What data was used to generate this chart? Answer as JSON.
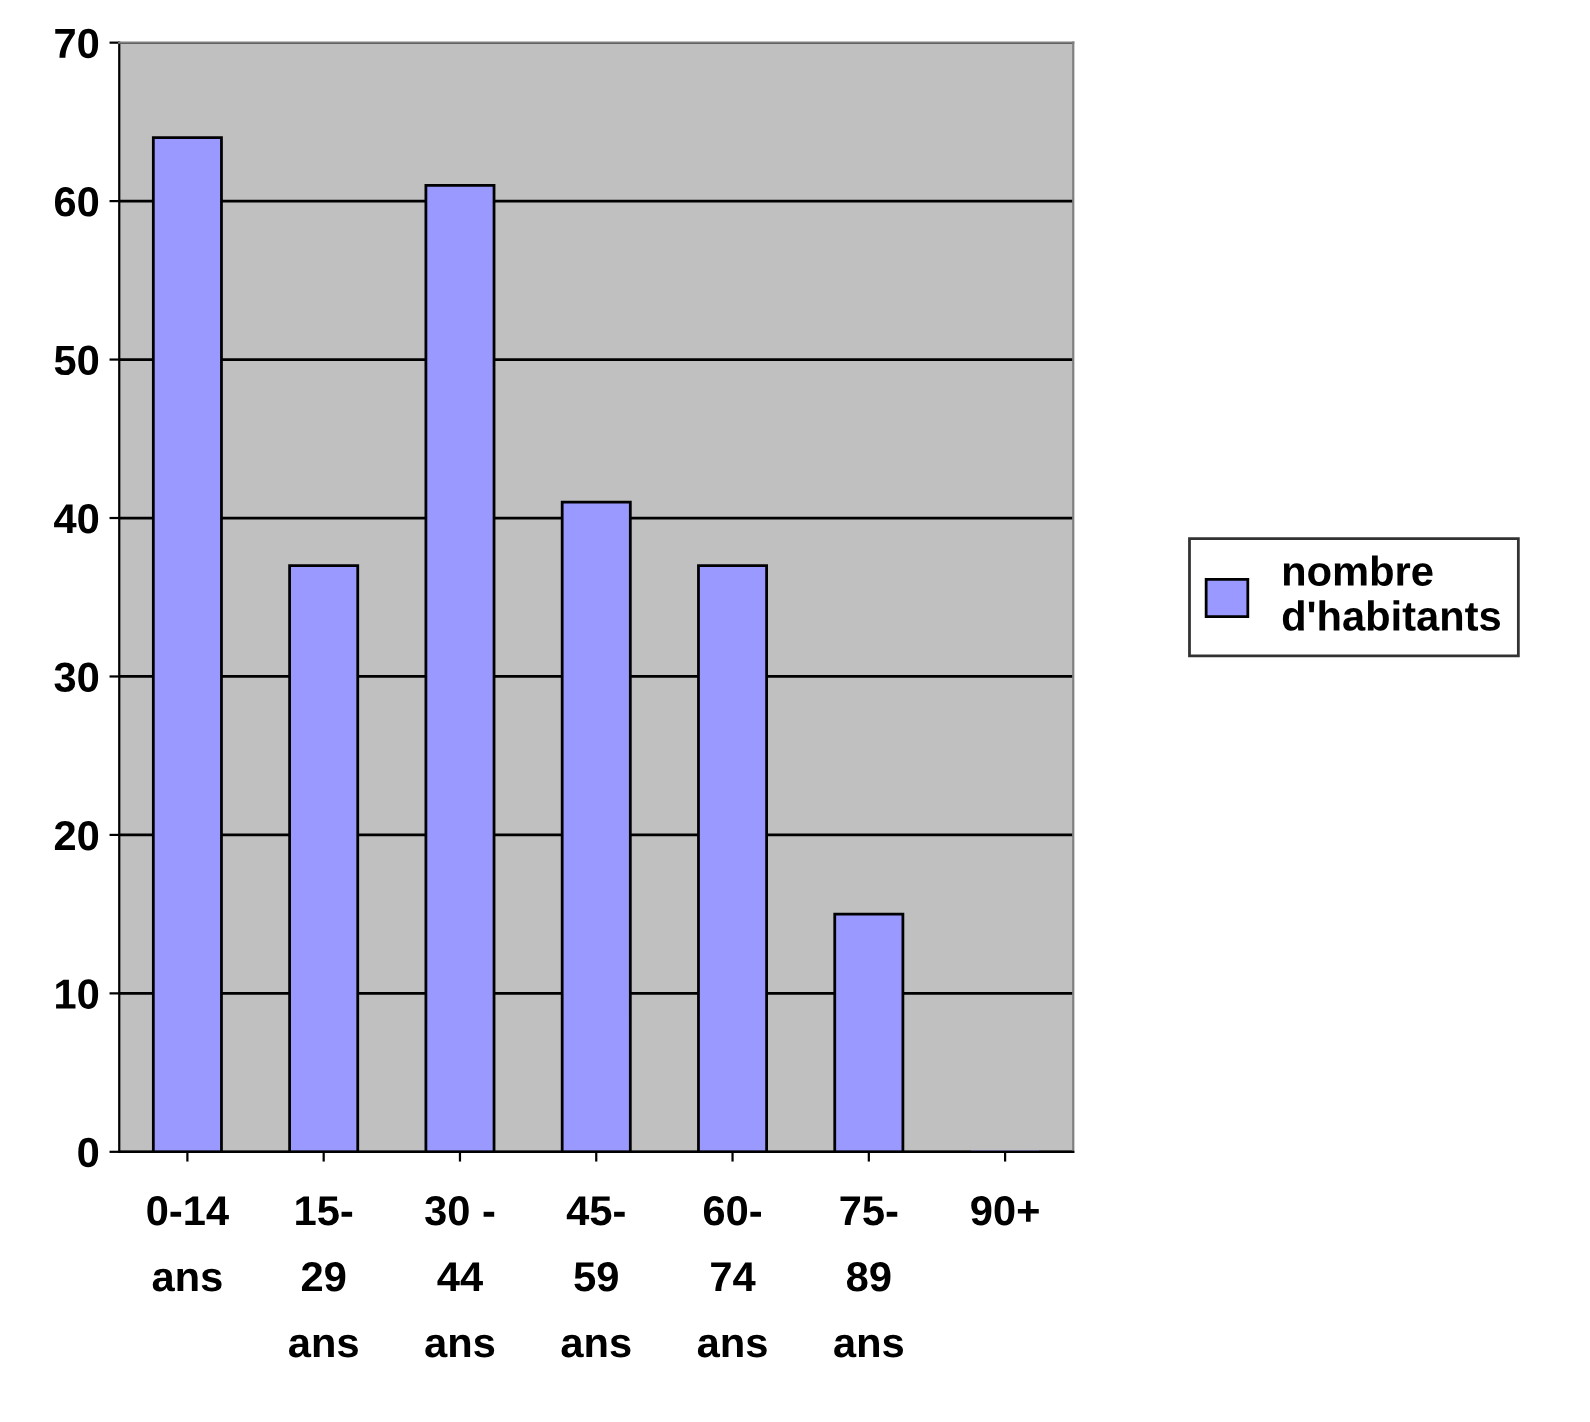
{
  "chart_data": {
    "type": "bar",
    "categories": [
      "0-14\nans",
      "15-\n29\nans",
      "30 -\n44\nans",
      "45-\n59\nans",
      "60-\n74\nans",
      "75-\n89\nans",
      "90+"
    ],
    "series": [
      {
        "name": "nombre\nd'habitants",
        "color": "#9999ff",
        "values": [
          64,
          37,
          61,
          41,
          37,
          15,
          0
        ]
      }
    ],
    "ylim": [
      0,
      70
    ],
    "yticks": [
      0,
      10,
      20,
      30,
      40,
      50,
      60,
      70
    ],
    "grid": "y",
    "legend": "right"
  }
}
